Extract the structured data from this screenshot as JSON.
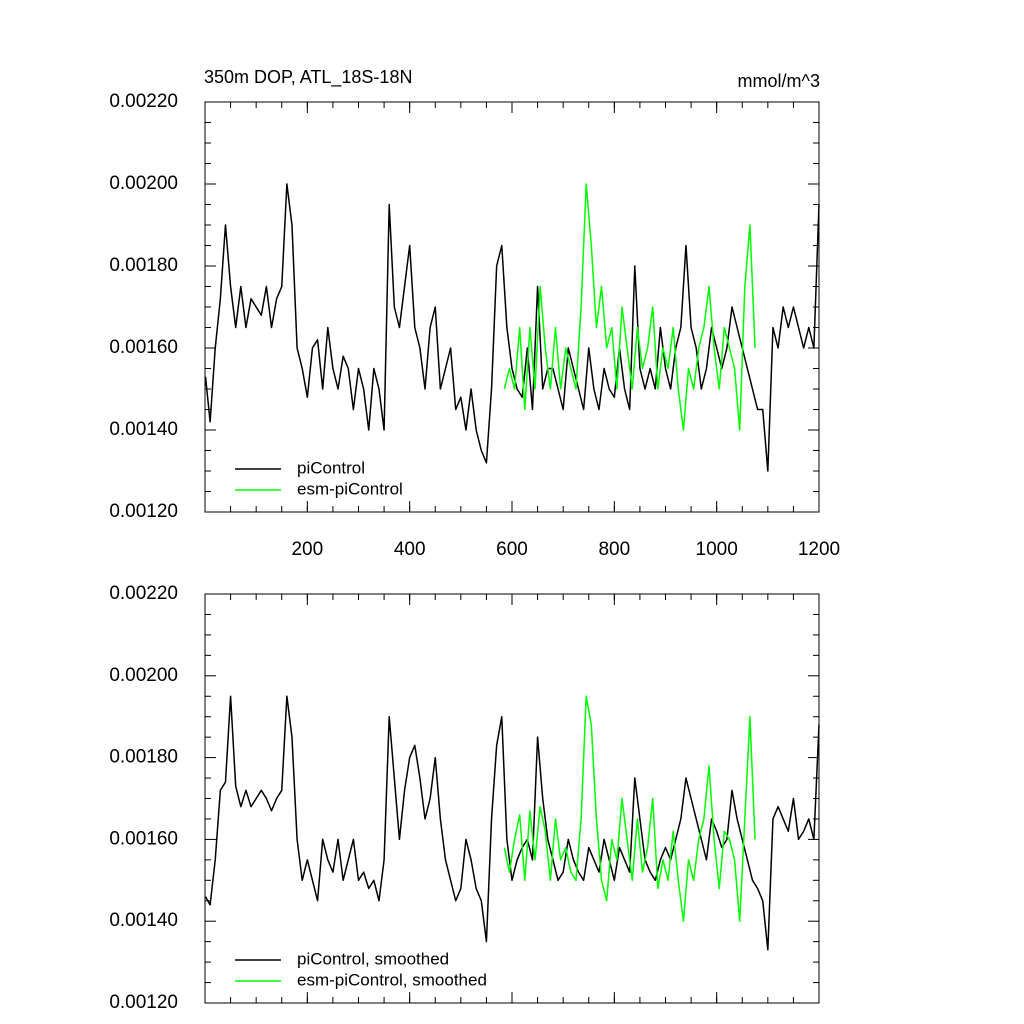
{
  "chart_data": [
    {
      "type": "line",
      "title": "350m DOP, ATL_18S-18N",
      "units": "mmol/m^3",
      "xlim": [
        0,
        1200
      ],
      "xticks": [
        200,
        400,
        600,
        800,
        1000,
        1200
      ],
      "ylim": [
        0.0012,
        0.0022
      ],
      "yticks": [
        {
          "value": 0.0012,
          "label": "0.00120"
        },
        {
          "value": 0.0014,
          "label": "0.00140"
        },
        {
          "value": 0.0016,
          "label": "0.00160"
        },
        {
          "value": 0.0018,
          "label": "0.00180"
        },
        {
          "value": 0.002,
          "label": "0.00200"
        },
        {
          "value": 0.0022,
          "label": "0.00220"
        }
      ],
      "legend": "lower left",
      "series": [
        {
          "name": "piControl",
          "color": "#000000",
          "x": [
            1,
            10,
            20,
            30,
            40,
            50,
            60,
            70,
            80,
            90,
            100,
            110,
            120,
            130,
            140,
            150,
            160,
            170,
            180,
            190,
            200,
            210,
            220,
            230,
            240,
            250,
            260,
            270,
            280,
            290,
            300,
            310,
            320,
            330,
            340,
            350,
            360,
            370,
            380,
            390,
            400,
            410,
            420,
            430,
            440,
            450,
            460,
            470,
            480,
            490,
            500,
            510,
            520,
            530,
            540,
            550,
            560,
            570,
            580,
            590,
            600,
            610,
            620,
            630,
            640,
            650,
            660,
            670,
            680,
            690,
            700,
            710,
            720,
            730,
            740,
            750,
            760,
            770,
            780,
            790,
            800,
            810,
            820,
            830,
            840,
            850,
            860,
            870,
            880,
            890,
            900,
            910,
            920,
            930,
            940,
            950,
            960,
            970,
            980,
            990,
            1000,
            1010,
            1020,
            1030,
            1040,
            1050,
            1060,
            1070,
            1080,
            1090,
            1100,
            1110,
            1120,
            1130,
            1140,
            1150,
            1160,
            1170,
            1180,
            1190,
            1200
          ],
          "values": [
            0.00153,
            0.00142,
            0.0016,
            0.00172,
            0.0019,
            0.00175,
            0.00165,
            0.00175,
            0.00165,
            0.00172,
            0.0017,
            0.00168,
            0.00175,
            0.00165,
            0.00172,
            0.00175,
            0.002,
            0.0019,
            0.0016,
            0.00155,
            0.00148,
            0.0016,
            0.00162,
            0.0015,
            0.00165,
            0.00155,
            0.0015,
            0.00158,
            0.00155,
            0.00145,
            0.00155,
            0.0015,
            0.0014,
            0.00155,
            0.0015,
            0.0014,
            0.00195,
            0.0017,
            0.00165,
            0.00175,
            0.00185,
            0.00165,
            0.0016,
            0.0015,
            0.00165,
            0.0017,
            0.0015,
            0.00155,
            0.0016,
            0.00145,
            0.00148,
            0.0014,
            0.0015,
            0.0014,
            0.00135,
            0.00132,
            0.0015,
            0.0018,
            0.00185,
            0.00165,
            0.00155,
            0.0015,
            0.00148,
            0.0016,
            0.00145,
            0.00175,
            0.0015,
            0.00155,
            0.00155,
            0.0015,
            0.00145,
            0.0016,
            0.00155,
            0.0015,
            0.00145,
            0.0016,
            0.0015,
            0.00145,
            0.00155,
            0.0015,
            0.00148,
            0.0016,
            0.0015,
            0.00145,
            0.0018,
            0.00155,
            0.0015,
            0.00155,
            0.0015,
            0.00165,
            0.00155,
            0.0015,
            0.0016,
            0.00165,
            0.00185,
            0.00165,
            0.0016,
            0.0015,
            0.00155,
            0.00165,
            0.0016,
            0.00155,
            0.0016,
            0.0017,
            0.00165,
            0.0016,
            0.00155,
            0.0015,
            0.00145,
            0.00145,
            0.0013,
            0.00165,
            0.0016,
            0.0017,
            0.00165,
            0.0017,
            0.00165,
            0.0016,
            0.00165,
            0.0016,
            0.00195
          ]
        },
        {
          "name": "esm-piControl",
          "color": "#00ff00",
          "x": [
            585,
            595,
            605,
            615,
            625,
            635,
            645,
            655,
            665,
            675,
            685,
            695,
            705,
            715,
            725,
            735,
            745,
            755,
            765,
            775,
            785,
            795,
            805,
            815,
            825,
            835,
            845,
            855,
            865,
            875,
            885,
            895,
            905,
            915,
            925,
            935,
            945,
            955,
            965,
            975,
            985,
            995,
            1005,
            1015,
            1025,
            1035,
            1045,
            1055,
            1065,
            1075
          ],
          "values": [
            0.0015,
            0.00155,
            0.0015,
            0.00165,
            0.00145,
            0.00165,
            0.0015,
            0.00175,
            0.0016,
            0.0015,
            0.00165,
            0.0015,
            0.0016,
            0.00155,
            0.0015,
            0.0017,
            0.002,
            0.00185,
            0.00165,
            0.00175,
            0.0016,
            0.00165,
            0.0015,
            0.0017,
            0.0016,
            0.0015,
            0.00165,
            0.00155,
            0.0016,
            0.0017,
            0.0015,
            0.0016,
            0.00155,
            0.00165,
            0.0015,
            0.0014,
            0.00155,
            0.0015,
            0.0016,
            0.00165,
            0.00175,
            0.0016,
            0.0015,
            0.00165,
            0.0016,
            0.00155,
            0.0014,
            0.00175,
            0.0019,
            0.0016
          ]
        }
      ]
    },
    {
      "type": "line",
      "xlim": [
        0,
        1200
      ],
      "ylim": [
        0.0012,
        0.0022
      ],
      "yticks": [
        {
          "value": 0.0012,
          "label": "0.00120"
        },
        {
          "value": 0.0014,
          "label": "0.00140"
        },
        {
          "value": 0.0016,
          "label": "0.00160"
        },
        {
          "value": 0.0018,
          "label": "0.00180"
        },
        {
          "value": 0.002,
          "label": "0.00200"
        },
        {
          "value": 0.0022,
          "label": "0.00220"
        }
      ],
      "legend": "lower left",
      "series": [
        {
          "name": "piControl, smoothed",
          "color": "#000000",
          "x": [
            1,
            10,
            20,
            30,
            40,
            50,
            60,
            70,
            80,
            90,
            100,
            110,
            120,
            130,
            140,
            150,
            160,
            170,
            180,
            190,
            200,
            210,
            220,
            230,
            240,
            250,
            260,
            270,
            280,
            290,
            300,
            310,
            320,
            330,
            340,
            350,
            360,
            370,
            380,
            390,
            400,
            410,
            420,
            430,
            440,
            450,
            460,
            470,
            480,
            490,
            500,
            510,
            520,
            530,
            540,
            550,
            560,
            570,
            580,
            590,
            600,
            610,
            620,
            630,
            640,
            650,
            660,
            670,
            680,
            690,
            700,
            710,
            720,
            730,
            740,
            750,
            760,
            770,
            780,
            790,
            800,
            810,
            820,
            830,
            840,
            850,
            860,
            870,
            880,
            890,
            900,
            910,
            920,
            930,
            940,
            950,
            960,
            970,
            980,
            990,
            1000,
            1010,
            1020,
            1030,
            1040,
            1050,
            1060,
            1070,
            1080,
            1090,
            1100,
            1110,
            1120,
            1130,
            1140,
            1150,
            1160,
            1170,
            1180,
            1190,
            1200
          ],
          "values": [
            0.00146,
            0.00144,
            0.00155,
            0.00172,
            0.00174,
            0.00195,
            0.00173,
            0.00168,
            0.00172,
            0.00168,
            0.0017,
            0.00172,
            0.0017,
            0.00167,
            0.0017,
            0.00172,
            0.00195,
            0.00185,
            0.0016,
            0.0015,
            0.00155,
            0.0015,
            0.00145,
            0.0016,
            0.00155,
            0.00152,
            0.0016,
            0.0015,
            0.00155,
            0.0016,
            0.0015,
            0.00152,
            0.00148,
            0.0015,
            0.00145,
            0.00155,
            0.0019,
            0.00175,
            0.0016,
            0.00172,
            0.0018,
            0.00183,
            0.00175,
            0.00165,
            0.0017,
            0.0018,
            0.00165,
            0.00155,
            0.0015,
            0.00145,
            0.00148,
            0.0016,
            0.00155,
            0.00148,
            0.00145,
            0.00135,
            0.00165,
            0.00183,
            0.0019,
            0.0016,
            0.0015,
            0.00155,
            0.00158,
            0.0016,
            0.00155,
            0.00185,
            0.0017,
            0.0016,
            0.00155,
            0.0015,
            0.00152,
            0.0016,
            0.00155,
            0.00152,
            0.0015,
            0.00158,
            0.00155,
            0.00152,
            0.0016,
            0.00155,
            0.0015,
            0.00158,
            0.00155,
            0.00152,
            0.00175,
            0.00165,
            0.00155,
            0.00152,
            0.0015,
            0.00155,
            0.00158,
            0.00155,
            0.0016,
            0.00165,
            0.00175,
            0.0017,
            0.00165,
            0.0016,
            0.00155,
            0.00165,
            0.00162,
            0.00158,
            0.0016,
            0.00172,
            0.00165,
            0.0016,
            0.00155,
            0.0015,
            0.00148,
            0.00145,
            0.00133,
            0.00165,
            0.00168,
            0.00165,
            0.00162,
            0.0017,
            0.0016,
            0.00162,
            0.00165,
            0.0016,
            0.00188
          ]
        },
        {
          "name": "esm-piControl, smoothed",
          "color": "#00ff00",
          "x": [
            585,
            595,
            605,
            615,
            625,
            635,
            645,
            655,
            665,
            675,
            685,
            695,
            705,
            715,
            725,
            735,
            745,
            755,
            765,
            775,
            785,
            795,
            805,
            815,
            825,
            835,
            845,
            855,
            865,
            875,
            885,
            895,
            905,
            915,
            925,
            935,
            945,
            955,
            965,
            975,
            985,
            995,
            1005,
            1015,
            1025,
            1035,
            1045,
            1055,
            1065,
            1075
          ],
          "values": [
            0.00158,
            0.00152,
            0.0016,
            0.00166,
            0.0015,
            0.00167,
            0.00155,
            0.00168,
            0.00162,
            0.0015,
            0.00165,
            0.00155,
            0.00158,
            0.00152,
            0.0015,
            0.00165,
            0.00195,
            0.00188,
            0.00165,
            0.0015,
            0.00145,
            0.0016,
            0.00155,
            0.0017,
            0.0016,
            0.0015,
            0.00165,
            0.00152,
            0.00158,
            0.0017,
            0.00148,
            0.00155,
            0.0015,
            0.00162,
            0.0015,
            0.0014,
            0.00155,
            0.0015,
            0.0016,
            0.00165,
            0.00178,
            0.0016,
            0.00148,
            0.00162,
            0.0016,
            0.00155,
            0.0014,
            0.00165,
            0.0019,
            0.0016
          ]
        }
      ]
    }
  ]
}
